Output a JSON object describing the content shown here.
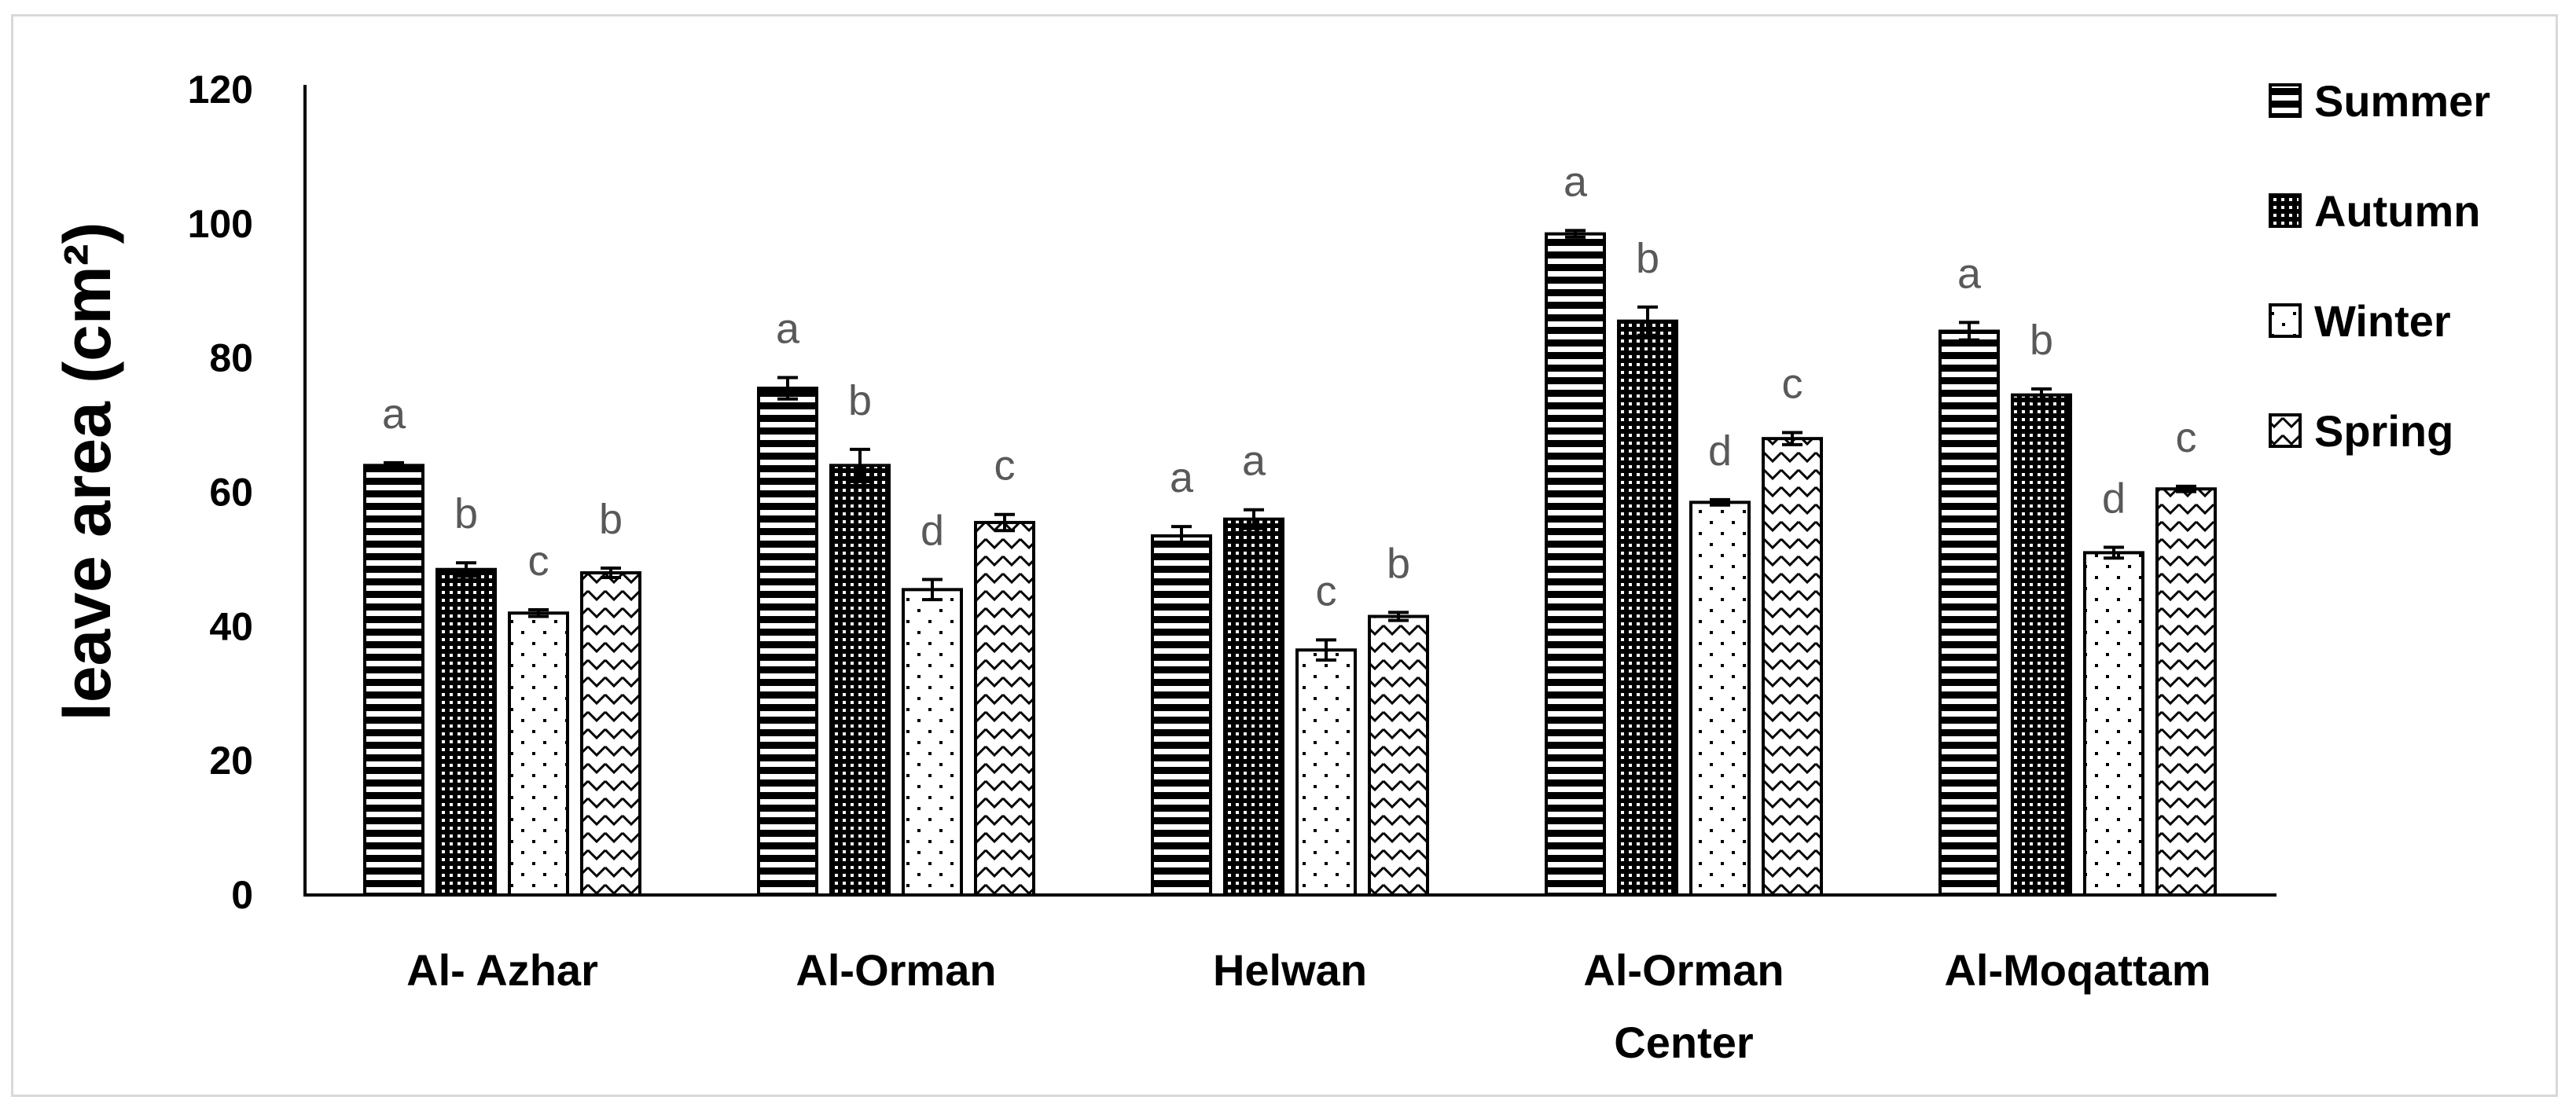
{
  "chart_data": {
    "type": "bar",
    "title": "",
    "xlabel": "",
    "ylabel": "leave area (cm²)",
    "ylim": [
      0,
      120
    ],
    "yticks": [
      "0",
      "20",
      "40",
      "60",
      "80",
      "100",
      "120"
    ],
    "grid": false,
    "legend_position": "right",
    "categories": [
      [
        "Al- Azhar"
      ],
      [
        "Al-Orman"
      ],
      [
        "Helwan"
      ],
      [
        "Al-Orman",
        "Center"
      ],
      [
        "Al-Moqattam"
      ]
    ],
    "series": [
      {
        "name": "Summer",
        "pattern": "horizontal-stripes",
        "values": [
          64,
          75.5,
          53.5,
          98.5,
          84
        ],
        "errors": [
          0.4,
          1.6,
          1.4,
          0.5,
          1.3
        ],
        "letters": [
          "a",
          "a",
          "a",
          "a",
          "a"
        ]
      },
      {
        "name": "Autumn",
        "pattern": "dense-dots",
        "values": [
          48.5,
          64,
          56,
          85.5,
          74.5
        ],
        "errors": [
          1.0,
          2.4,
          1.4,
          2.1,
          0.9
        ],
        "letters": [
          "b",
          "b",
          "a",
          "b",
          "b"
        ]
      },
      {
        "name": "Winter",
        "pattern": "sparse-dots",
        "values": [
          42,
          45.5,
          36.5,
          58.5,
          51
        ],
        "errors": [
          0.5,
          1.5,
          1.5,
          0.4,
          0.8
        ],
        "letters": [
          "c",
          "d",
          "c",
          "d",
          "d"
        ]
      },
      {
        "name": "Spring",
        "pattern": "zigzag",
        "values": [
          48,
          55.5,
          41.5,
          68,
          60.5
        ],
        "errors": [
          0.7,
          1.2,
          0.6,
          0.9,
          0.4
        ],
        "letters": [
          "b",
          "c",
          "b",
          "c",
          "c"
        ]
      }
    ],
    "colors": {
      "axis": "#000000",
      "bar_outline": "#000000",
      "letter": "#595959",
      "frame": "#d9d9d9"
    }
  }
}
